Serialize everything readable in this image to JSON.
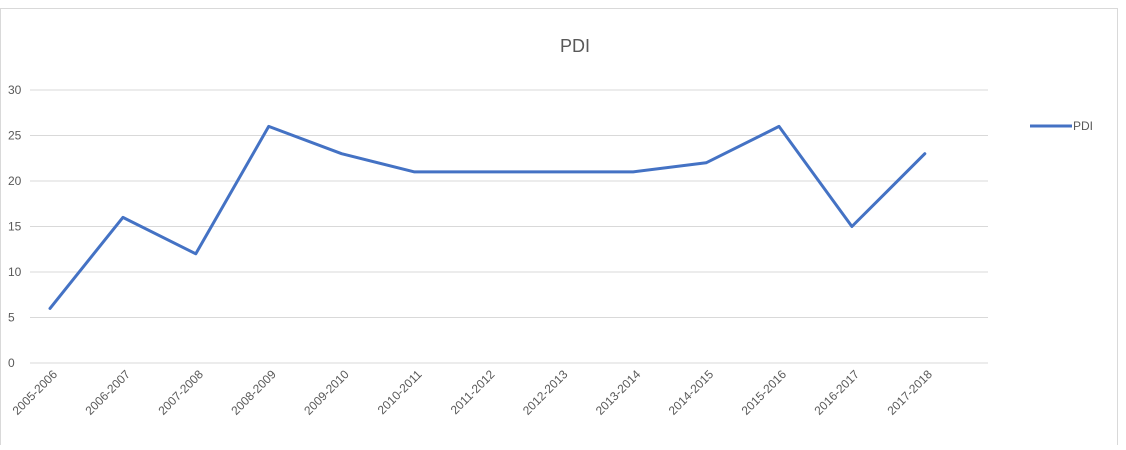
{
  "chart_data": {
    "type": "line",
    "title": "PDI",
    "categories": [
      "2005-2006",
      "2006-2007",
      "2007-2008",
      "2008-2009",
      "2009-2010",
      "2010-2011",
      "2011-2012",
      "2012-2013",
      "2013-2014",
      "2014-2015",
      "2015-2016",
      "2016-2017",
      "2017-2018"
    ],
    "series": [
      {
        "name": "PDI",
        "color": "#4472c4",
        "values": [
          6,
          16,
          12,
          26,
          23,
          21,
          21,
          21,
          21,
          22,
          26,
          15,
          23
        ]
      }
    ],
    "ylim": [
      0,
      30
    ],
    "yticks": [
      0,
      5,
      10,
      15,
      20,
      25,
      30
    ],
    "grid": true,
    "legend": "right"
  }
}
